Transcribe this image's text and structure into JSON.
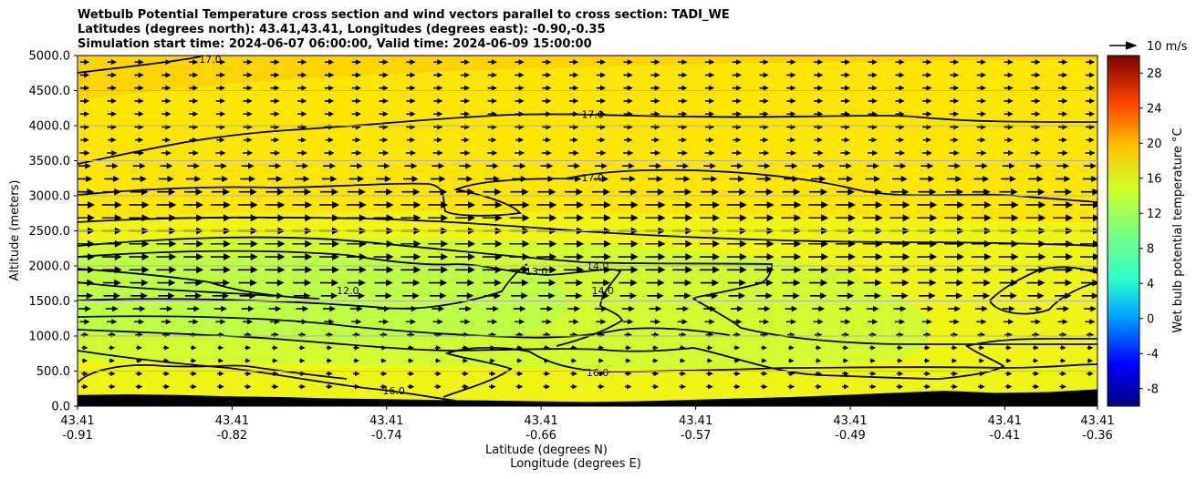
{
  "chart_data": {
    "type": "contour",
    "title_lines": [
      "Wetbulb Potential Temperature cross section and wind vectors parallel to cross section: TADI_WE",
      "Latitudes (degrees north): 43.41,43.41, Longitudes (degrees east): -0.90,-0.35",
      "Simulation start time: 2024-06-07 06:00:00, Valid time: 2024-06-09 15:00:00"
    ],
    "ylabel": "Altitude (meters)",
    "xlabel_lat": "Latitude (degrees N)",
    "xlabel_lon": "Longitude (degrees E)",
    "ylim": [
      0,
      5000
    ],
    "x_range": [
      0,
      1
    ],
    "y_ticks": [
      {
        "value": 0,
        "label": "0.0"
      },
      {
        "value": 500,
        "label": "500.0"
      },
      {
        "value": 1000,
        "label": "1000.0"
      },
      {
        "value": 1500,
        "label": "1500.0"
      },
      {
        "value": 2000,
        "label": "2000.0"
      },
      {
        "value": 2500,
        "label": "2500.0"
      },
      {
        "value": 3000,
        "label": "3000.0"
      },
      {
        "value": 3500,
        "label": "3500.0"
      },
      {
        "value": 4000,
        "label": "4000.0"
      },
      {
        "value": 4500,
        "label": "4500.0"
      },
      {
        "value": 5000,
        "label": "5000.0"
      }
    ],
    "x_ticks": [
      {
        "pos": 0.0,
        "lat": "43.41",
        "lon": "-0.91"
      },
      {
        "pos": 0.1515,
        "lat": "43.41",
        "lon": "-0.82"
      },
      {
        "pos": 0.303,
        "lat": "43.41",
        "lon": "-0.74"
      },
      {
        "pos": 0.4545,
        "lat": "43.41",
        "lon": "-0.66"
      },
      {
        "pos": 0.6061,
        "lat": "43.41",
        "lon": "-0.57"
      },
      {
        "pos": 0.7576,
        "lat": "43.41",
        "lon": "-0.49"
      },
      {
        "pos": 0.9091,
        "lat": "43.41",
        "lon": "-0.41"
      },
      {
        "pos": 1.0,
        "lat": "43.41",
        "lon": "-0.36"
      }
    ],
    "field_regions": [
      {
        "level": 17,
        "color": "#ffd400"
      },
      {
        "level": 16,
        "color": "#ffe600"
      },
      {
        "level": 15,
        "color": "#f0f516"
      },
      {
        "level": 14,
        "color": "#d2fa30"
      },
      {
        "level": 13,
        "color": "#bdff45"
      }
    ],
    "contour_labels": [
      {
        "text": "17.0",
        "x": 0.505,
        "alt": 4160
      },
      {
        "text": "17.0",
        "x": 0.13,
        "alt": 4950
      },
      {
        "text": "17.0",
        "x": 0.505,
        "alt": 3260
      },
      {
        "text": "13.0",
        "x": 0.45,
        "alt": 1920
      },
      {
        "text": "14.0",
        "x": 0.51,
        "alt": 2000
      },
      {
        "text": "14.0",
        "x": 0.515,
        "alt": 1650
      },
      {
        "text": "12.0",
        "x": 0.265,
        "alt": 1650
      },
      {
        "text": "16.0",
        "x": 0.51,
        "alt": 480
      },
      {
        "text": "16.0",
        "x": 0.31,
        "alt": 220
      }
    ],
    "terrain_alt": [
      160,
      170,
      160,
      140,
      130,
      110,
      100,
      90,
      80,
      70,
      60,
      70,
      90,
      110,
      130,
      160,
      190,
      220,
      190,
      200,
      240
    ],
    "vector_speed": [
      0.35,
      0.35,
      0.35,
      0.35,
      0.35,
      0.35,
      0.3,
      0.4,
      0.55,
      0.7,
      0.9,
      1.0,
      1.0,
      1.0,
      1.0,
      1.0,
      1.0,
      0.9,
      0.8,
      0.55,
      0.4,
      0.25,
      0.15,
      0.12,
      0.2,
      0.2,
      0.1
    ],
    "colorbar": {
      "label": "Wet bulb potential temperature °C",
      "min": -10,
      "max": 30,
      "ticks": [
        "-8",
        "-4",
        "0",
        "4",
        "8",
        "12",
        "16",
        "20",
        "24",
        "28"
      ],
      "tick_values": [
        -8,
        -4,
        0,
        4,
        8,
        12,
        16,
        20,
        24,
        28
      ]
    },
    "vector_key": {
      "label": "10 m/s"
    }
  }
}
